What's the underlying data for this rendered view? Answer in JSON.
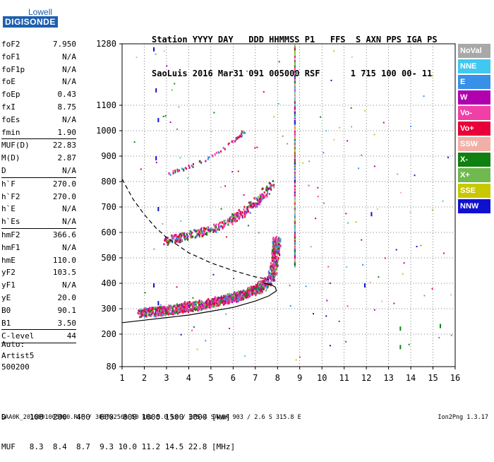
{
  "logo": {
    "line1": "Lowell",
    "line2": "DIGISONDE"
  },
  "header": {
    "line1": "Station YYYY DAY   DDD HHMMSS P1   FFS  S AXN PPS IGA PS",
    "line2": "SaoLuis 2016 Mar31 091 005000 RSF      1 715 100 00- 11"
  },
  "params": [
    {
      "k": "foF2",
      "v": "7.950"
    },
    {
      "k": "foF1",
      "v": "N/A"
    },
    {
      "k": "foF1p",
      "v": "N/A"
    },
    {
      "k": "foE",
      "v": "N/A"
    },
    {
      "k": "foEp",
      "v": "0.43"
    },
    {
      "k": "fxI",
      "v": "8.75"
    },
    {
      "k": "foEs",
      "v": "N/A"
    },
    {
      "k": "fmin",
      "v": "1.90",
      "sep": true
    },
    {
      "k": "MUF(D)",
      "v": "22.83"
    },
    {
      "k": "M(D)",
      "v": "2.87"
    },
    {
      "k": "D",
      "v": "N/A",
      "sep": true
    },
    {
      "k": "h`F",
      "v": "270.0"
    },
    {
      "k": "h`F2",
      "v": "270.0"
    },
    {
      "k": "h`E",
      "v": "N/A"
    },
    {
      "k": "h`Es",
      "v": "N/A",
      "sep": true
    },
    {
      "k": "hmF2",
      "v": "366.6"
    },
    {
      "k": "hmF1",
      "v": "N/A"
    },
    {
      "k": "hmE",
      "v": "110.0"
    },
    {
      "k": "yF2",
      "v": "103.5"
    },
    {
      "k": "yF1",
      "v": "N/A"
    },
    {
      "k": "yE",
      "v": "20.0"
    },
    {
      "k": "B0",
      "v": "90.1"
    },
    {
      "k": "B1",
      "v": "3.50",
      "sep": true
    },
    {
      "k": "C-level",
      "v": "44",
      "sep": true
    }
  ],
  "auto": {
    "l1": "Auto:",
    "l2": "Artist5",
    "l3": "500200"
  },
  "legend": [
    {
      "name": "NoVal",
      "color": "#a8a8a8"
    },
    {
      "name": "NNE",
      "color": "#40c8f0"
    },
    {
      "name": "E",
      "color": "#3890e8"
    },
    {
      "name": "W",
      "color": "#b000b0"
    },
    {
      "name": "Vo-",
      "color": "#f040a8"
    },
    {
      "name": "Vo+",
      "color": "#e80038"
    },
    {
      "name": "SSW",
      "color": "#f0b0a8"
    },
    {
      "name": "X-",
      "color": "#108010"
    },
    {
      "name": "X+",
      "color": "#70b850"
    },
    {
      "name": "SSE",
      "color": "#c8c800"
    },
    {
      "name": "NNW",
      "color": "#1010d0"
    }
  ],
  "muf": {
    "row1": "D     100  200  400  600  800 1000 1500 3000 [km]",
    "row2": "MUF   8.3  8.4  8.7  9.3 10.0 11.2 14.5 22.8 [MHz]"
  },
  "footer": "SAA0K_2016091005000.RSF / 300fx256h 50 kHz 5.0 km / DPS-4 SAA0K 903 / 2.6 S 315.8 E",
  "version": "Ion2Png 1.3.17",
  "chart_data": {
    "type": "scatter",
    "x_ticks": [
      1,
      2,
      3,
      4,
      5,
      6,
      7,
      8,
      9,
      10,
      11,
      12,
      13,
      14,
      15,
      16
    ],
    "y_ticks": [
      80,
      200,
      300,
      400,
      500,
      600,
      700,
      800,
      900,
      1000,
      1100,
      1280
    ],
    "xlim": [
      1,
      16
    ],
    "ylim": [
      80,
      1280
    ],
    "grid": true,
    "o_trace": {
      "x": [
        1.8,
        2.5,
        3,
        3.5,
        4,
        4.5,
        5,
        5.5,
        6,
        6.5,
        7,
        7.3,
        7.6,
        7.8,
        7.9,
        7.95
      ],
      "y": [
        280,
        285,
        290,
        295,
        305,
        310,
        320,
        330,
        340,
        355,
        370,
        385,
        410,
        450,
        520,
        570
      ]
    },
    "o_second_hop": {
      "x": [
        2.9,
        3.5,
        4.2,
        5,
        5.8,
        6.5,
        7.2,
        7.7
      ],
      "y": [
        560,
        575,
        590,
        610,
        640,
        680,
        730,
        790
      ]
    },
    "profile_curve": {
      "x": [
        1,
        2,
        3,
        4,
        5,
        6,
        7,
        7.6,
        7.95,
        7.9,
        7.7,
        7.4
      ],
      "y": [
        245,
        255,
        265,
        275,
        290,
        305,
        330,
        350,
        370,
        385,
        395,
        400
      ]
    },
    "dashed_curve": {
      "x": [
        1,
        1.5,
        2,
        2.5,
        3,
        3.5,
        4,
        5,
        6,
        7,
        7.6
      ],
      "y": [
        810,
        730,
        670,
        620,
        580,
        550,
        520,
        480,
        450,
        425,
        415
      ]
    }
  }
}
